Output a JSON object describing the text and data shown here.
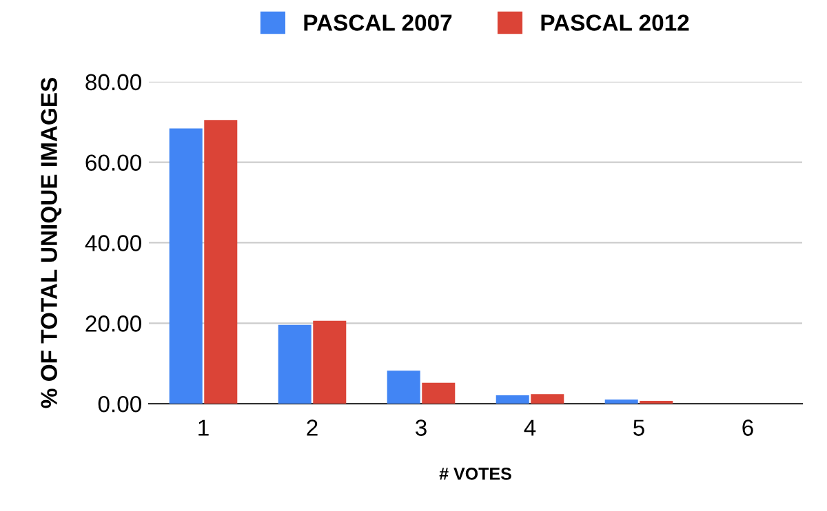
{
  "chart_data": {
    "type": "bar",
    "xlabel": "# VOTES",
    "ylabel": "% OF TOTAL UNIQUE IMAGES",
    "categories": [
      "1",
      "2",
      "3",
      "4",
      "5",
      "6"
    ],
    "series": [
      {
        "name": "PASCAL 2007",
        "color": "#4285f4",
        "values": [
          68.4,
          19.6,
          8.2,
          2.1,
          1.0,
          0.0
        ]
      },
      {
        "name": "PASCAL 2012",
        "color": "#db4437",
        "values": [
          70.5,
          20.6,
          5.2,
          2.4,
          0.7,
          0.0
        ]
      }
    ],
    "ylim": [
      0,
      80
    ],
    "yticks": [
      {
        "value": 0,
        "label": "0.00"
      },
      {
        "value": 20,
        "label": "20.00"
      },
      {
        "value": 40,
        "label": "40.00"
      },
      {
        "value": 60,
        "label": "60.00"
      },
      {
        "value": 80,
        "label": "80.00"
      }
    ],
    "grid": "y",
    "legend": "top"
  }
}
